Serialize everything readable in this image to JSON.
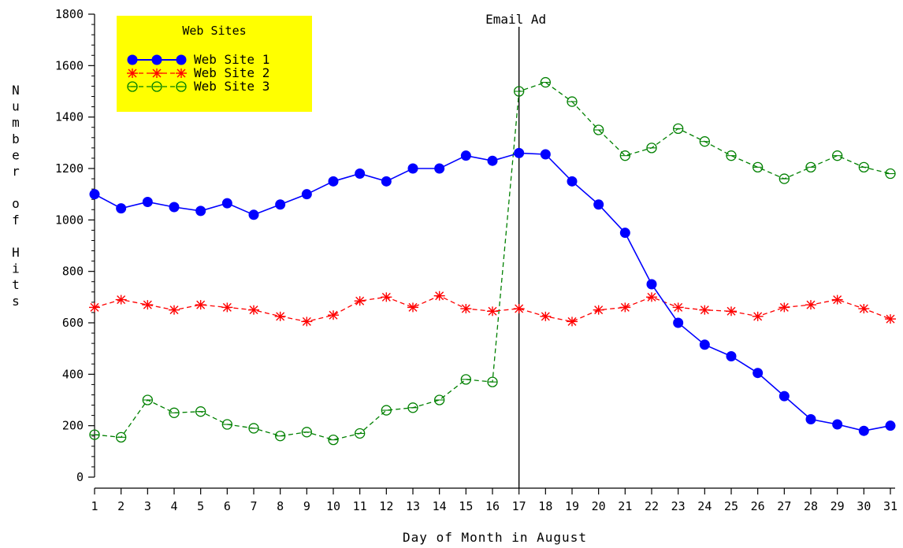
{
  "chart_data": {
    "type": "line",
    "xlabel": "Day of Month in August",
    "ylabel": "Number of Hits",
    "xlim": [
      1,
      31
    ],
    "ylim": [
      0,
      1800
    ],
    "x": [
      1,
      2,
      3,
      4,
      5,
      6,
      7,
      8,
      9,
      10,
      11,
      12,
      13,
      14,
      15,
      16,
      17,
      18,
      19,
      20,
      21,
      22,
      23,
      24,
      25,
      26,
      27,
      28,
      29,
      30,
      31
    ],
    "x_ticks": [
      1,
      2,
      3,
      4,
      5,
      6,
      7,
      8,
      9,
      10,
      11,
      12,
      13,
      14,
      15,
      16,
      17,
      18,
      19,
      20,
      21,
      22,
      23,
      24,
      25,
      26,
      27,
      28,
      29,
      30,
      31
    ],
    "y_ticks": [
      0,
      200,
      400,
      600,
      800,
      1000,
      1200,
      1400,
      1600,
      1800
    ],
    "grid": false,
    "legend": {
      "title": "Web Sites",
      "placement": "top-left",
      "background": "#ffff00"
    },
    "annotation": {
      "label": "Email Ad",
      "x": 17
    },
    "series": [
      {
        "name": "Web Site 1",
        "color": "#0000ff",
        "marker": "filled-circle",
        "line": "solid",
        "values": [
          1100,
          1045,
          1070,
          1050,
          1035,
          1065,
          1020,
          1060,
          1100,
          1150,
          1180,
          1150,
          1200,
          1200,
          1250,
          1230,
          1260,
          1255,
          1150,
          1060,
          950,
          750,
          600,
          515,
          470,
          405,
          315,
          225,
          205,
          180,
          200
        ]
      },
      {
        "name": "Web Site 2",
        "color": "#ff0000",
        "marker": "star",
        "line": "dashed",
        "values": [
          660,
          690,
          670,
          650,
          670,
          660,
          650,
          625,
          605,
          630,
          685,
          700,
          660,
          705,
          655,
          645,
          655,
          625,
          605,
          650,
          660,
          700,
          660,
          650,
          645,
          625,
          660,
          670,
          690,
          655,
          615
        ]
      },
      {
        "name": "Web Site 3",
        "color": "#008000",
        "marker": "open-circle",
        "line": "dashed",
        "values": [
          165,
          155,
          300,
          250,
          255,
          205,
          190,
          160,
          175,
          145,
          170,
          260,
          270,
          300,
          380,
          370,
          1500,
          1535,
          1460,
          1350,
          1250,
          1280,
          1355,
          1305,
          1250,
          1205,
          1160,
          1205,
          1250,
          1205,
          1180
        ]
      }
    ]
  }
}
